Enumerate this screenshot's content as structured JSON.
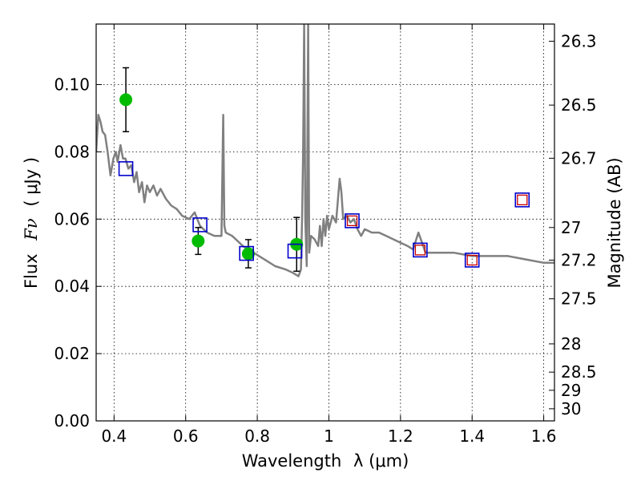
{
  "chart_data": {
    "type": "scatter",
    "xlabel": "Wavelength",
    "xlabel_math": "λ (μm)",
    "ylabel": "Flux",
    "ylabel_math": "Fν",
    "ylabel_unit": "( μJy )",
    "y2label": "Magnitude (AB)",
    "xlim": [
      0.35,
      1.63
    ],
    "ylim": [
      0.0,
      0.118
    ],
    "grid": true,
    "x_ticks": [
      {
        "value": 0.4,
        "label": "0.4"
      },
      {
        "value": 0.6,
        "label": "0.6"
      },
      {
        "value": 0.8,
        "label": "0.8"
      },
      {
        "value": 1.0,
        "label": "1"
      },
      {
        "value": 1.2,
        "label": "1.2"
      },
      {
        "value": 1.4,
        "label": "1.4"
      },
      {
        "value": 1.6,
        "label": "1.6"
      }
    ],
    "y_ticks": [
      {
        "value": 0.0,
        "label": "0.00"
      },
      {
        "value": 0.02,
        "label": "0.02"
      },
      {
        "value": 0.04,
        "label": "0.04"
      },
      {
        "value": 0.06,
        "label": "0.06"
      },
      {
        "value": 0.08,
        "label": "0.08"
      },
      {
        "value": 0.1,
        "label": "0.10"
      }
    ],
    "y2_ticks": [
      {
        "label": "26.3",
        "flux": 0.1129
      },
      {
        "label": "26.5",
        "flux": 0.0939
      },
      {
        "label": "26.7",
        "flux": 0.0781
      },
      {
        "label": "27",
        "flux": 0.0575
      },
      {
        "label": "27.2",
        "flux": 0.0478
      },
      {
        "label": "27.5",
        "flux": 0.0363
      },
      {
        "label": "28",
        "flux": 0.0229
      },
      {
        "label": "28.5",
        "flux": 0.0145
      },
      {
        "label": "29",
        "flux": 0.0091
      },
      {
        "label": "30",
        "flux": 0.0036
      }
    ],
    "series": [
      {
        "kind": "line",
        "color": "#808080",
        "x": [
          0.35,
          0.356,
          0.362,
          0.368,
          0.375,
          0.382,
          0.39,
          0.398,
          0.405,
          0.41,
          0.418,
          0.425,
          0.432,
          0.44,
          0.448,
          0.456,
          0.463,
          0.47,
          0.478,
          0.485,
          0.492,
          0.5,
          0.51,
          0.52,
          0.53,
          0.545,
          0.56,
          0.575,
          0.59,
          0.61,
          0.625,
          0.64,
          0.66,
          0.68,
          0.7,
          0.705,
          0.708,
          0.712,
          0.73,
          0.76,
          0.79,
          0.82,
          0.85,
          0.88,
          0.9,
          0.915,
          0.922,
          0.925,
          0.928,
          0.931,
          0.934,
          0.938,
          0.942,
          0.945,
          0.95,
          0.96,
          0.97,
          0.975,
          0.98,
          0.985,
          0.99,
          0.995,
          1.0,
          1.01,
          1.02,
          1.03,
          1.035,
          1.04,
          1.05,
          1.06,
          1.07,
          1.08,
          1.09,
          1.1,
          1.12,
          1.14,
          1.16,
          1.18,
          1.2,
          1.22,
          1.235,
          1.25,
          1.26,
          1.27,
          1.3,
          1.35,
          1.4,
          1.45,
          1.5,
          1.55,
          1.6,
          1.63
        ],
        "y": [
          0.08,
          0.091,
          0.089,
          0.086,
          0.085,
          0.08,
          0.073,
          0.078,
          0.08,
          0.077,
          0.082,
          0.078,
          0.078,
          0.075,
          0.076,
          0.071,
          0.074,
          0.068,
          0.071,
          0.065,
          0.07,
          0.068,
          0.07,
          0.067,
          0.069,
          0.066,
          0.064,
          0.063,
          0.061,
          0.06,
          0.062,
          0.058,
          0.056,
          0.055,
          0.055,
          0.091,
          0.058,
          0.056,
          0.055,
          0.052,
          0.05,
          0.048,
          0.046,
          0.045,
          0.044,
          0.043,
          0.045,
          0.06,
          0.08,
          0.118,
          0.06,
          0.046,
          0.118,
          0.05,
          0.055,
          0.054,
          0.052,
          0.058,
          0.052,
          0.06,
          0.055,
          0.061,
          0.057,
          0.061,
          0.059,
          0.072,
          0.068,
          0.06,
          0.061,
          0.059,
          0.06,
          0.057,
          0.055,
          0.057,
          0.056,
          0.056,
          0.055,
          0.054,
          0.053,
          0.052,
          0.051,
          0.056,
          0.053,
          0.05,
          0.05,
          0.05,
          0.049,
          0.049,
          0.049,
          0.048,
          0.047,
          0.047
        ]
      },
      {
        "kind": "points",
        "marker": "circle",
        "color": "#00bb00",
        "points": [
          {
            "x": 0.433,
            "y": 0.0955,
            "err_lo": 0.0095,
            "err_hi": 0.0095
          },
          {
            "x": 0.635,
            "y": 0.0535,
            "err_lo": 0.004,
            "err_hi": 0.004
          },
          {
            "x": 0.775,
            "y": 0.0497,
            "err_lo": 0.0042,
            "err_hi": 0.0042
          },
          {
            "x": 0.91,
            "y": 0.0525,
            "err_lo": 0.008,
            "err_hi": 0.008
          }
        ]
      },
      {
        "kind": "points",
        "marker": "square-open",
        "color": "#0000cc",
        "points": [
          {
            "x": 0.433,
            "y": 0.075
          },
          {
            "x": 0.64,
            "y": 0.0583
          },
          {
            "x": 0.77,
            "y": 0.0498
          },
          {
            "x": 0.905,
            "y": 0.0505
          },
          {
            "x": 1.065,
            "y": 0.0595
          },
          {
            "x": 1.255,
            "y": 0.0508
          },
          {
            "x": 1.4,
            "y": 0.0478
          },
          {
            "x": 1.54,
            "y": 0.0657
          }
        ]
      },
      {
        "kind": "points",
        "marker": "square-open-small",
        "color": "#cc0000",
        "points": [
          {
            "x": 1.065,
            "y": 0.0595
          },
          {
            "x": 1.255,
            "y": 0.0508
          },
          {
            "x": 1.4,
            "y": 0.0478
          },
          {
            "x": 1.54,
            "y": 0.0657
          }
        ]
      }
    ]
  }
}
